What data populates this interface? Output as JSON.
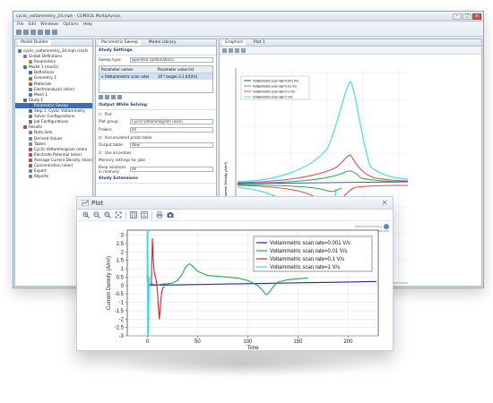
{
  "app": {
    "title": "cyclic_voltammetry_2d.mph - COMSOL Multiphysics",
    "menu": [
      "File",
      "Edit",
      "Windows",
      "Options",
      "Help"
    ],
    "builder": {
      "tab": "Model Builder",
      "items": [
        {
          "label": "cyclic_voltammetry_2d.mph (root)",
          "level": 0,
          "color": "#4f7fbf"
        },
        {
          "label": "Global Definitions",
          "level": 1,
          "color": "#9a6ab8"
        },
        {
          "label": "Parameters",
          "level": 2,
          "color": "#b88a3a"
        },
        {
          "label": "Model 1 (mod1)",
          "level": 1,
          "color": "#3a8a5a"
        },
        {
          "label": "Definitions",
          "level": 2,
          "color": "#3a6ab8"
        },
        {
          "label": "Geometry 1",
          "level": 2,
          "color": "#6b8a2a"
        },
        {
          "label": "Materials",
          "level": 2,
          "color": "#b85a3a"
        },
        {
          "label": "Electroanalysis (elan)",
          "level": 2,
          "color": "#3a8ab8"
        },
        {
          "label": "Mesh 1",
          "level": 2,
          "color": "#5a7a9a"
        },
        {
          "label": "Study 1",
          "level": 1,
          "color": "#4a6aa8"
        },
        {
          "label": "Parametric Sweep",
          "level": 2,
          "color": "#2e5f9e",
          "selected": true
        },
        {
          "label": "Step 1: Cyclic Voltammetry",
          "level": 2,
          "color": "#4a6aa8"
        },
        {
          "label": "Solver Configurations",
          "level": 2,
          "color": "#6a7a8a"
        },
        {
          "label": "Job Configurations",
          "level": 2,
          "color": "#6a7a8a"
        },
        {
          "label": "Results",
          "level": 1,
          "color": "#b84a4a"
        },
        {
          "label": "Data Sets",
          "level": 2,
          "color": "#6a8aa8"
        },
        {
          "label": "Derived Values",
          "level": 2,
          "color": "#6a8aa8"
        },
        {
          "label": "Tables",
          "level": 2,
          "color": "#6a8aa8"
        },
        {
          "label": "Cyclic Voltammogram (elan)",
          "level": 2,
          "color": "#c05050"
        },
        {
          "label": "Electrode Potential (elan)",
          "level": 2,
          "color": "#c05050"
        },
        {
          "label": "Average Current Density (elan)",
          "level": 2,
          "color": "#c05050"
        },
        {
          "label": "Concentration (elan)",
          "level": 2,
          "color": "#c05050"
        },
        {
          "label": "Export",
          "level": 2,
          "color": "#6a8aa8"
        },
        {
          "label": "Reports",
          "level": 2,
          "color": "#6a8aa8"
        }
      ]
    },
    "settings": {
      "tabs": [
        "Parametric Sweep",
        "Model Library"
      ],
      "study_settings": "Study Settings",
      "sweep_type_label": "Sweep type:",
      "sweep_type_value": "Specified combinations",
      "table_headers": [
        "Parameter names",
        "Parameter value list"
      ],
      "table_rows": [
        [
          "v (Voltammetric scan rate)",
          "10^range(-3,1,0)[V/s]"
        ]
      ],
      "output_section": "Output While Solving",
      "plot_label": "Plot",
      "plot_group_label": "Plot group:",
      "plot_group_value": "Cyclic Voltammogram (elan)",
      "probes_label": "Probes:",
      "probes_value": "All",
      "accumulated_label": "Accumulated probe table",
      "output_table_label": "Output table:",
      "output_table_value": "New",
      "use_all_probes_label": "Use all probes",
      "memory_label": "Memory settings for jobs",
      "keep_solutions_label": "Keep solutions in memory:",
      "keep_solutions_value": "All",
      "study_extensions": "Study Extensions"
    },
    "graphics": {
      "tabs": [
        "Graphics",
        "Plot 1"
      ],
      "legend": [
        "Voltammetric scan rate=0.001 V/s",
        "Voltammetric scan rate=0.01 V/s",
        "Voltammetric scan rate=0.1 V/s",
        "Voltammetric scan rate=1 V/s"
      ],
      "ylabel": "Current Density (A/m²)"
    }
  },
  "plot_window": {
    "title": "Plot",
    "close_icon": "✕",
    "toolbar_icons": [
      "zoom-in-icon",
      "zoom-out-icon",
      "zoom-box-icon",
      "zoom-extents-icon",
      "grid-icon",
      "table-icon",
      "print-icon",
      "camera-icon"
    ],
    "logo_line1": "Electrochemistry",
    "logo_line2": "Software Products"
  },
  "chart_data": {
    "type": "line",
    "xlabel": "Time",
    "ylabel": "Current Density (A/m²)",
    "xlim": [
      -20,
      230
    ],
    "ylim": [
      -3,
      3.3
    ],
    "xticks": [
      0,
      50,
      100,
      150,
      200
    ],
    "yticks": [
      -3,
      -2.5,
      -2,
      -1.5,
      -1,
      -0.5,
      0,
      0.5,
      1,
      1.5,
      2,
      2.5,
      3
    ],
    "legend_position": "top-right",
    "grid": true,
    "series": [
      {
        "name": "Voltammetric scan rate=0.001 V/s",
        "color": "#2222cc",
        "x": [
          0,
          30,
          60,
          90,
          120,
          150,
          180,
          210,
          228
        ],
        "y": [
          0.02,
          0.04,
          0.07,
          0.1,
          0.13,
          0.16,
          0.19,
          0.22,
          0.24
        ]
      },
      {
        "name": "Voltammetric scan rate=0.01 V/s",
        "color": "#22aa44",
        "x": [
          0,
          4,
          8,
          12,
          16,
          20,
          25,
          30,
          35,
          38,
          42,
          45,
          50,
          60,
          70,
          80,
          90,
          100,
          110,
          115,
          118,
          121,
          125,
          130,
          140,
          150,
          160
        ],
        "y": [
          -0.05,
          0.1,
          0.05,
          0.05,
          0.1,
          0.1,
          0.15,
          0.3,
          0.7,
          1.1,
          1.3,
          1.15,
          0.85,
          0.6,
          0.55,
          0.5,
          0.45,
          0.3,
          0.0,
          -0.3,
          -0.55,
          -0.45,
          -0.1,
          0.2,
          0.35,
          0.4,
          0.45
        ]
      },
      {
        "name": "Voltammetric scan rate=0.1 V/s",
        "color": "#dd2222",
        "x": [
          4,
          4.6,
          5,
          5.8,
          6.8,
          8,
          9,
          10,
          11,
          12,
          13,
          14,
          15,
          16,
          17
        ],
        "y": [
          0.05,
          1.8,
          2.8,
          1.7,
          0.8,
          0.5,
          0.2,
          -0.3,
          -1.3,
          -2.0,
          -1.2,
          -0.5,
          -0.2,
          -0.1,
          -0.05
        ]
      },
      {
        "name": "Voltammetric scan rate=1 V/s",
        "color": "#33dddd",
        "x": [
          0,
          0,
          0.3,
          0.6,
          1,
          1.5,
          2
        ],
        "y": [
          0.2,
          3.3,
          3.3,
          -3.0,
          -3.0,
          0.5,
          0.2
        ]
      }
    ]
  }
}
